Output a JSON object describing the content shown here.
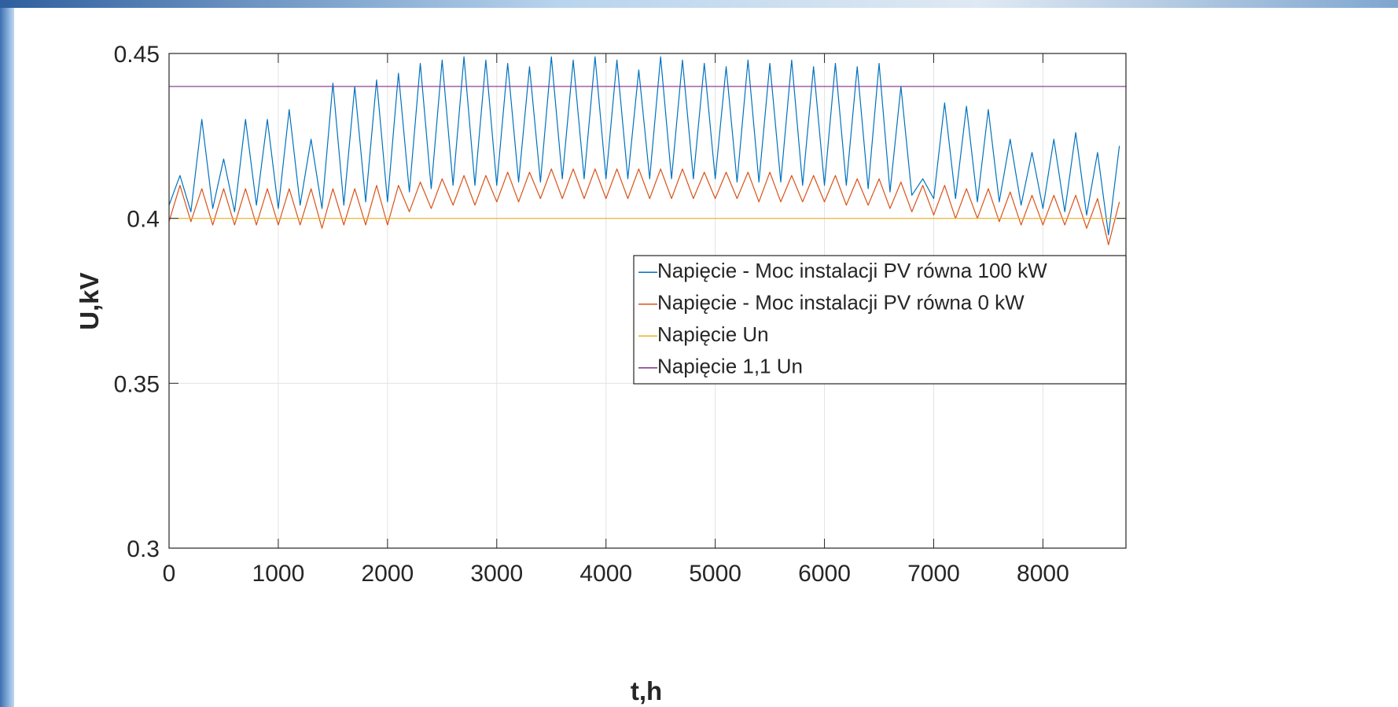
{
  "chart_data": {
    "type": "line",
    "x_label": "t,h",
    "y_label": "U,kV",
    "xlim": [
      0,
      8760
    ],
    "ylim": [
      0.3,
      0.45
    ],
    "xticks": [
      0,
      1000,
      2000,
      3000,
      4000,
      5000,
      6000,
      7000,
      8000
    ],
    "yticks": [
      0.3,
      0.35,
      0.4,
      0.45
    ],
    "grid": true,
    "legend_position": "right",
    "series": [
      {
        "name": "Napięcie - Moc instalacji PV równa 100 kW",
        "color": "#0072BD",
        "x": [
          0,
          100,
          200,
          300,
          400,
          500,
          600,
          700,
          800,
          900,
          1000,
          1100,
          1200,
          1300,
          1400,
          1500,
          1600,
          1700,
          1800,
          1900,
          2000,
          2100,
          2200,
          2300,
          2400,
          2500,
          2600,
          2700,
          2800,
          2900,
          3000,
          3100,
          3200,
          3300,
          3400,
          3500,
          3600,
          3700,
          3800,
          3900,
          4000,
          4100,
          4200,
          4300,
          4400,
          4500,
          4600,
          4700,
          4800,
          4900,
          5000,
          5100,
          5200,
          5300,
          5400,
          5500,
          5600,
          5700,
          5800,
          5900,
          6000,
          6100,
          6200,
          6300,
          6400,
          6500,
          6600,
          6700,
          6800,
          6900,
          7000,
          7100,
          7200,
          7300,
          7400,
          7500,
          7600,
          7700,
          7800,
          7900,
          8000,
          8100,
          8200,
          8300,
          8400,
          8500,
          8600,
          8700
        ],
        "values": [
          0.404,
          0.413,
          0.402,
          0.43,
          0.403,
          0.418,
          0.402,
          0.43,
          0.404,
          0.43,
          0.403,
          0.433,
          0.404,
          0.424,
          0.403,
          0.441,
          0.404,
          0.44,
          0.405,
          0.442,
          0.405,
          0.444,
          0.408,
          0.447,
          0.409,
          0.448,
          0.41,
          0.449,
          0.41,
          0.448,
          0.41,
          0.447,
          0.411,
          0.446,
          0.411,
          0.449,
          0.412,
          0.448,
          0.412,
          0.449,
          0.412,
          0.448,
          0.412,
          0.445,
          0.412,
          0.449,
          0.412,
          0.448,
          0.412,
          0.447,
          0.412,
          0.446,
          0.411,
          0.448,
          0.411,
          0.447,
          0.411,
          0.448,
          0.41,
          0.446,
          0.41,
          0.447,
          0.41,
          0.446,
          0.409,
          0.447,
          0.408,
          0.44,
          0.407,
          0.412,
          0.406,
          0.435,
          0.406,
          0.434,
          0.405,
          0.433,
          0.405,
          0.424,
          0.404,
          0.42,
          0.403,
          0.424,
          0.402,
          0.426,
          0.401,
          0.42,
          0.395,
          0.422
        ]
      },
      {
        "name": "Napięcie - Moc instalacji PV równa 0 kW",
        "color": "#D95319",
        "x": [
          0,
          100,
          200,
          300,
          400,
          500,
          600,
          700,
          800,
          900,
          1000,
          1100,
          1200,
          1300,
          1400,
          1500,
          1600,
          1700,
          1800,
          1900,
          2000,
          2100,
          2200,
          2300,
          2400,
          2500,
          2600,
          2700,
          2800,
          2900,
          3000,
          3100,
          3200,
          3300,
          3400,
          3500,
          3600,
          3700,
          3800,
          3900,
          4000,
          4100,
          4200,
          4300,
          4400,
          4500,
          4600,
          4700,
          4800,
          4900,
          5000,
          5100,
          5200,
          5300,
          5400,
          5500,
          5600,
          5700,
          5800,
          5900,
          6000,
          6100,
          6200,
          6300,
          6400,
          6500,
          6600,
          6700,
          6800,
          6900,
          7000,
          7100,
          7200,
          7300,
          7400,
          7500,
          7600,
          7700,
          7800,
          7900,
          8000,
          8100,
          8200,
          8300,
          8400,
          8500,
          8600,
          8700
        ],
        "values": [
          0.399,
          0.41,
          0.399,
          0.409,
          0.398,
          0.409,
          0.398,
          0.409,
          0.398,
          0.409,
          0.398,
          0.409,
          0.398,
          0.409,
          0.397,
          0.409,
          0.398,
          0.409,
          0.398,
          0.41,
          0.398,
          0.41,
          0.402,
          0.411,
          0.403,
          0.412,
          0.404,
          0.413,
          0.404,
          0.413,
          0.405,
          0.414,
          0.405,
          0.414,
          0.406,
          0.415,
          0.406,
          0.415,
          0.406,
          0.415,
          0.406,
          0.415,
          0.406,
          0.415,
          0.406,
          0.415,
          0.406,
          0.415,
          0.406,
          0.414,
          0.406,
          0.414,
          0.406,
          0.414,
          0.405,
          0.414,
          0.405,
          0.413,
          0.405,
          0.413,
          0.405,
          0.413,
          0.404,
          0.412,
          0.404,
          0.412,
          0.403,
          0.411,
          0.402,
          0.41,
          0.401,
          0.41,
          0.4,
          0.409,
          0.4,
          0.409,
          0.399,
          0.408,
          0.398,
          0.407,
          0.398,
          0.407,
          0.398,
          0.407,
          0.397,
          0.406,
          0.392,
          0.405
        ]
      },
      {
        "name": "Napięcie Un",
        "color": "#EDB120",
        "x": [
          0,
          8760
        ],
        "values": [
          0.4,
          0.4
        ]
      },
      {
        "name": "Napięcie 1,1 Un",
        "color": "#7E2F8E",
        "x": [
          0,
          8760
        ],
        "values": [
          0.44,
          0.44
        ]
      }
    ]
  }
}
